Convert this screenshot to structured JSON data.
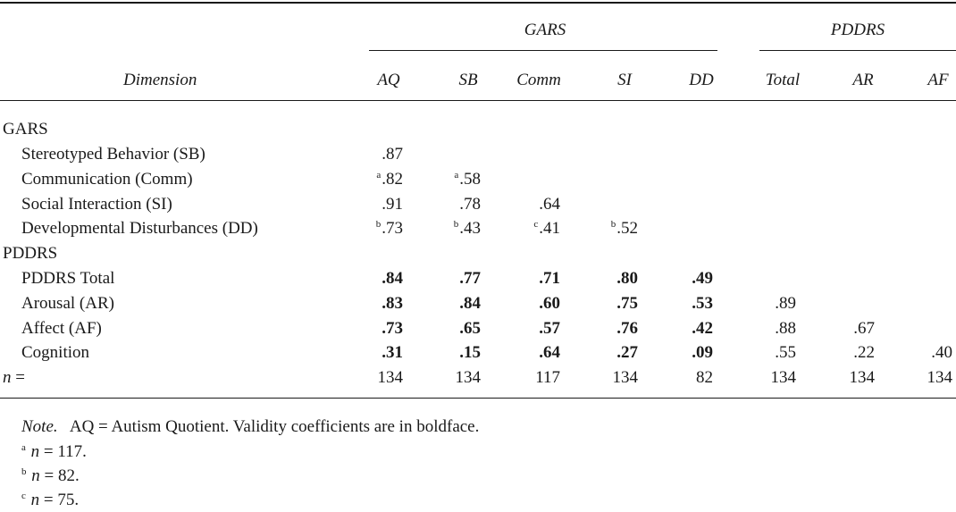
{
  "table": {
    "group_headers": [
      "GARS",
      "PDDRS"
    ],
    "dimension_header": "Dimension",
    "column_headers": [
      "AQ",
      "SB",
      "Comm",
      "SI",
      "DD",
      "Total",
      "AR",
      "AF"
    ],
    "sections": {
      "gars": "GARS",
      "pddrs": "PDDRS"
    },
    "rows": [
      {
        "label": "Stereotyped Behavior (SB)",
        "cells": [
          {
            "v": ".87"
          }
        ]
      },
      {
        "label": "Communication (Comm)",
        "cells": [
          {
            "v": ".82",
            "sup": "a"
          },
          {
            "v": ".58",
            "sup": "a"
          }
        ]
      },
      {
        "label": "Social Interaction (SI)",
        "cells": [
          {
            "v": ".91"
          },
          {
            "v": ".78"
          },
          {
            "v": ".64"
          }
        ]
      },
      {
        "label": "Developmental Disturbances (DD)",
        "cells": [
          {
            "v": ".73",
            "sup": "b"
          },
          {
            "v": ".43",
            "sup": "b"
          },
          {
            "v": ".41",
            "sup": "c"
          },
          {
            "v": ".52",
            "sup": "b"
          }
        ]
      },
      {
        "label": "PDDRS Total",
        "cells": [
          {
            "v": ".84",
            "bold": true
          },
          {
            "v": ".77",
            "bold": true
          },
          {
            "v": ".71",
            "bold": true
          },
          {
            "v": ".80",
            "bold": true
          },
          {
            "v": ".49",
            "bold": true
          }
        ]
      },
      {
        "label": "Arousal (AR)",
        "cells": [
          {
            "v": ".83",
            "bold": true
          },
          {
            "v": ".84",
            "bold": true
          },
          {
            "v": ".60",
            "bold": true
          },
          {
            "v": ".75",
            "bold": true
          },
          {
            "v": ".53",
            "bold": true
          },
          {
            "v": ".89"
          }
        ]
      },
      {
        "label": "Affect (AF)",
        "cells": [
          {
            "v": ".73",
            "bold": true
          },
          {
            "v": ".65",
            "bold": true
          },
          {
            "v": ".57",
            "bold": true
          },
          {
            "v": ".76",
            "bold": true
          },
          {
            "v": ".42",
            "bold": true
          },
          {
            "v": ".88"
          },
          {
            "v": ".67"
          }
        ]
      },
      {
        "label": "Cognition",
        "cells": [
          {
            "v": ".31",
            "bold": true
          },
          {
            "v": ".15",
            "bold": true
          },
          {
            "v": ".64",
            "bold": true
          },
          {
            "v": ".27",
            "bold": true
          },
          {
            "v": ".09",
            "bold": true
          },
          {
            "v": ".55"
          },
          {
            "v": ".22"
          },
          {
            "v": ".40"
          }
        ]
      }
    ],
    "n_row": {
      "label_n": "n",
      "label_eq": "=",
      "values": [
        "134",
        "134",
        "117",
        "134",
        "82",
        "134",
        "134",
        "134"
      ]
    }
  },
  "notes": {
    "note_label": "Note.",
    "note_text": "AQ = Autism Quotient. Validity coefficients are in boldface.",
    "footnotes": [
      {
        "mark": "a",
        "var": "n",
        "text": "= 117."
      },
      {
        "mark": "b",
        "var": "n",
        "text": "= 82."
      },
      {
        "mark": "c",
        "var": "n",
        "text": "= 75."
      }
    ]
  }
}
